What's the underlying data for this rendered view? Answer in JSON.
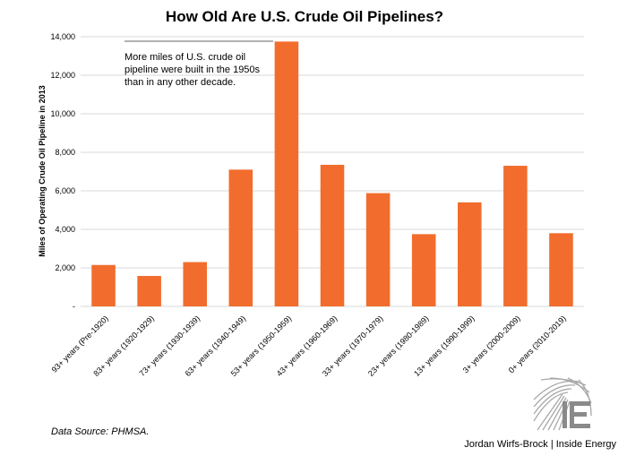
{
  "chart_data": {
    "type": "bar",
    "title": "How Old Are U.S. Crude Oil Pipelines?",
    "ylabel": "Miles of Operating Crude Oil Pipeline in 2013",
    "xlabel": "",
    "ylim": [
      0,
      14000
    ],
    "yticks": [
      "-",
      "2,000",
      "4,000",
      "6,000",
      "8,000",
      "10,000",
      "12,000",
      "14,000"
    ],
    "categories": [
      "93+ years  (Pre-1920)",
      "83+ years  (1920-1929)",
      "73+ years  (1930-1939)",
      "63+ years  (1940-1949)",
      "53+ years  (1950-1959)",
      "43+ years  (1960-1969)",
      "33+ years  (1970-1979)",
      "23+ years  (1980-1989)",
      "13+ years  (1990-1999)",
      "3+ years  (2000-2009)",
      "0+ years  (2010-2019)"
    ],
    "values": [
      2150,
      1580,
      2300,
      7100,
      13750,
      7350,
      5880,
      3750,
      5400,
      7300,
      3800
    ],
    "bar_color": "#f26d2d",
    "grid": true,
    "annotation": [
      "More miles of U.S. crude oil",
      "pipeline were built in the 1950s",
      "than in any other decade."
    ]
  },
  "source": "Data Source: PHMSA.",
  "credit": "Jordan Wirfs-Brock | Inside Energy",
  "logo_icon": "inside-energy-logo-icon"
}
